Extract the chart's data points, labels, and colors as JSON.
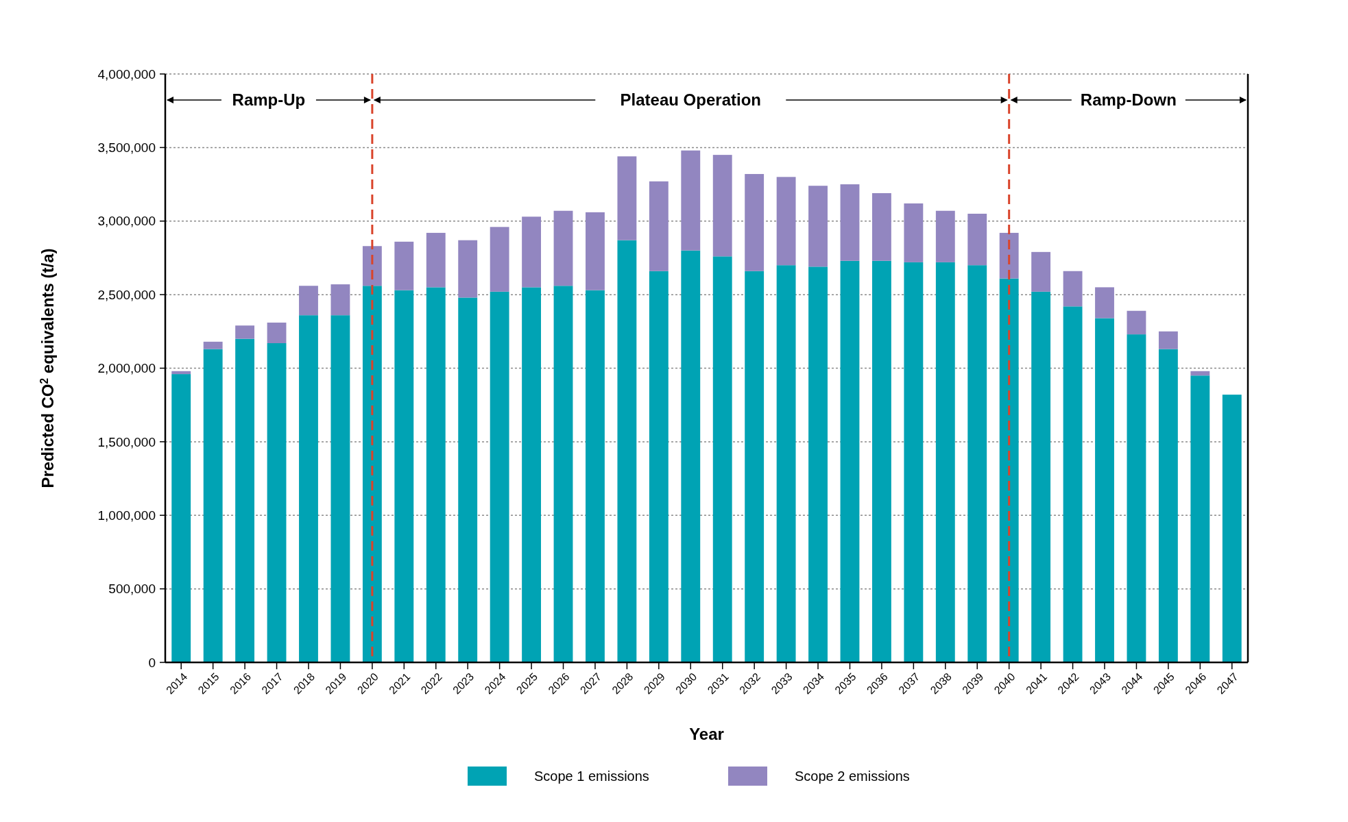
{
  "chart_data": {
    "type": "bar",
    "stacked": true,
    "xlabel": "Year",
    "ylabel": "Predicted CO$^{2}$ equivalents (t/a)",
    "categories": [
      "2014",
      "2015",
      "2016",
      "2017",
      "2018",
      "2019",
      "2020",
      "2021",
      "2022",
      "2023",
      "2024",
      "2025",
      "2026",
      "2027",
      "2028",
      "2029",
      "2030",
      "2031",
      "2032",
      "2033",
      "2034",
      "2035",
      "2036",
      "2037",
      "2038",
      "2039",
      "2040",
      "2041",
      "2042",
      "2043",
      "2044",
      "2045",
      "2046",
      "2047"
    ],
    "series": [
      {
        "name": "Scope 1 emissions",
        "color": "#00a3b4",
        "values": [
          1960000,
          2130000,
          2200000,
          2170000,
          2360000,
          2360000,
          2560000,
          2530000,
          2550000,
          2480000,
          2520000,
          2550000,
          2560000,
          2530000,
          2870000,
          2660000,
          2800000,
          2760000,
          2660000,
          2700000,
          2690000,
          2730000,
          2730000,
          2720000,
          2720000,
          2700000,
          2610000,
          2520000,
          2420000,
          2340000,
          2230000,
          2130000,
          1950000,
          1820000
        ]
      },
      {
        "name": "Scope 2 emissions",
        "color": "#9286c0",
        "values": [
          20000,
          50000,
          90000,
          140000,
          200000,
          210000,
          270000,
          330000,
          370000,
          390000,
          440000,
          480000,
          510000,
          530000,
          570000,
          610000,
          680000,
          690000,
          660000,
          600000,
          550000,
          520000,
          460000,
          400000,
          350000,
          350000,
          310000,
          270000,
          240000,
          210000,
          160000,
          120000,
          30000,
          0
        ]
      }
    ],
    "ylim": [
      0,
      4000000
    ],
    "yticks": [
      0,
      {
        "value": 500000,
        "label": "500,000"
      },
      {
        "value": 1000000,
        "label": "1,000,000"
      },
      {
        "value": 1500000,
        "label": "1,500,000"
      },
      {
        "value": 2000000,
        "label": "2,000,000"
      },
      {
        "value": 2500000,
        "label": "2,500,000"
      },
      {
        "value": 3000000,
        "label": "3,000,000"
      },
      {
        "value": 3500000,
        "label": "3,500,000"
      },
      {
        "value": 4000000,
        "label": "4,000,000"
      }
    ],
    "grid": "y",
    "legend": "bottom",
    "ref_lines": [
      {
        "axis": "x",
        "value": "2020",
        "color": "#d9442b",
        "line_style": "dashed"
      },
      {
        "axis": "x",
        "value": "2040",
        "color": "#d9442b",
        "line_style": "dashed"
      }
    ],
    "annotations": [
      {
        "text": "Ramp-Up",
        "x": "2020"
      },
      "Plateau Operation",
      {
        "text": "Ramp-Down",
        "x": "2040"
      }
    ]
  }
}
